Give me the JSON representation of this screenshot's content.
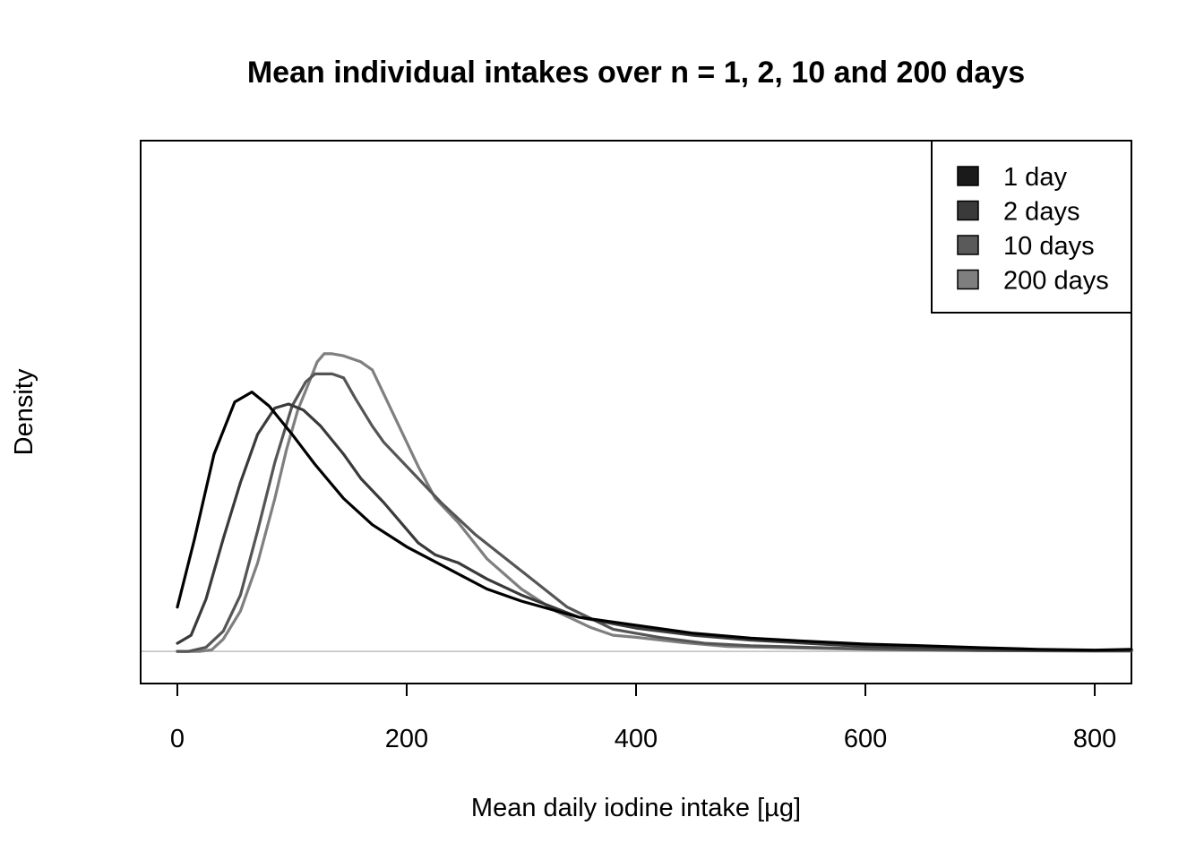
{
  "chart_data": {
    "type": "line",
    "title": "Mean individual intakes over n = 1, 2, 10 and 200 days",
    "xlabel": "Mean daily iodine intake [µg]",
    "ylabel": "Density",
    "xlim": [
      -32,
      832
    ],
    "ylim": [
      -0.08,
      1.27
    ],
    "x_ticks": [
      0,
      200,
      400,
      600,
      800
    ],
    "x_tick_labels": [
      "0",
      "200",
      "400",
      "600",
      "800"
    ],
    "y_ticks_shown": false,
    "baseline_y": 0,
    "legend_position": "top-right",
    "series": [
      {
        "name": "1 day",
        "color": "#000000",
        "swatch_color": "#1a1a1a",
        "points": [
          [
            0,
            0.11
          ],
          [
            15,
            0.28
          ],
          [
            32,
            0.49
          ],
          [
            50,
            0.62
          ],
          [
            65,
            0.645
          ],
          [
            80,
            0.61
          ],
          [
            100,
            0.54
          ],
          [
            120,
            0.465
          ],
          [
            145,
            0.38
          ],
          [
            170,
            0.315
          ],
          [
            200,
            0.26
          ],
          [
            240,
            0.2
          ],
          [
            270,
            0.155
          ],
          [
            300,
            0.125
          ],
          [
            350,
            0.085
          ],
          [
            400,
            0.065
          ],
          [
            450,
            0.045
          ],
          [
            500,
            0.033
          ],
          [
            550,
            0.025
          ],
          [
            600,
            0.018
          ],
          [
            650,
            0.014
          ],
          [
            700,
            0.009
          ],
          [
            750,
            0.005
          ],
          [
            800,
            0.003
          ],
          [
            832,
            0.005
          ]
        ]
      },
      {
        "name": "2 days",
        "color": "#3a3a3a",
        "swatch_color": "#3a3a3a",
        "points": [
          [
            0,
            0.02
          ],
          [
            12,
            0.04
          ],
          [
            25,
            0.13
          ],
          [
            40,
            0.28
          ],
          [
            55,
            0.42
          ],
          [
            70,
            0.54
          ],
          [
            85,
            0.605
          ],
          [
            97,
            0.615
          ],
          [
            110,
            0.6
          ],
          [
            125,
            0.56
          ],
          [
            145,
            0.49
          ],
          [
            160,
            0.43
          ],
          [
            180,
            0.37
          ],
          [
            210,
            0.27
          ],
          [
            225,
            0.24
          ],
          [
            245,
            0.22
          ],
          [
            270,
            0.18
          ],
          [
            300,
            0.14
          ],
          [
            350,
            0.085
          ],
          [
            400,
            0.058
          ],
          [
            450,
            0.04
          ],
          [
            500,
            0.028
          ],
          [
            550,
            0.02
          ],
          [
            600,
            0.012
          ],
          [
            650,
            0.009
          ],
          [
            700,
            0.005
          ],
          [
            750,
            0.003
          ],
          [
            800,
            0.002
          ],
          [
            832,
            0.002
          ]
        ]
      },
      {
        "name": "10 days",
        "color": "#555555",
        "swatch_color": "#5a5a5a",
        "points": [
          [
            0,
            0.0
          ],
          [
            10,
            0.0
          ],
          [
            25,
            0.01
          ],
          [
            40,
            0.05
          ],
          [
            55,
            0.14
          ],
          [
            70,
            0.3
          ],
          [
            85,
            0.47
          ],
          [
            100,
            0.61
          ],
          [
            112,
            0.67
          ],
          [
            120,
            0.69
          ],
          [
            135,
            0.69
          ],
          [
            145,
            0.68
          ],
          [
            155,
            0.63
          ],
          [
            170,
            0.56
          ],
          [
            180,
            0.52
          ],
          [
            200,
            0.46
          ],
          [
            230,
            0.37
          ],
          [
            260,
            0.29
          ],
          [
            300,
            0.2
          ],
          [
            340,
            0.11
          ],
          [
            380,
            0.055
          ],
          [
            420,
            0.035
          ],
          [
            460,
            0.02
          ],
          [
            500,
            0.014
          ],
          [
            550,
            0.01
          ],
          [
            600,
            0.006
          ],
          [
            650,
            0.004
          ],
          [
            700,
            0.002
          ],
          [
            800,
            0.001
          ],
          [
            832,
            0.001
          ]
        ]
      },
      {
        "name": "200 days",
        "color": "#7f7f7f",
        "swatch_color": "#7f7f7f",
        "points": [
          [
            0,
            0.0
          ],
          [
            20,
            0.0
          ],
          [
            30,
            0.004
          ],
          [
            40,
            0.03
          ],
          [
            55,
            0.1
          ],
          [
            70,
            0.22
          ],
          [
            85,
            0.38
          ],
          [
            95,
            0.5
          ],
          [
            105,
            0.6
          ],
          [
            115,
            0.67
          ],
          [
            122,
            0.72
          ],
          [
            128,
            0.74
          ],
          [
            135,
            0.74
          ],
          [
            145,
            0.735
          ],
          [
            160,
            0.72
          ],
          [
            170,
            0.7
          ],
          [
            180,
            0.64
          ],
          [
            195,
            0.55
          ],
          [
            210,
            0.46
          ],
          [
            225,
            0.38
          ],
          [
            245,
            0.32
          ],
          [
            270,
            0.23
          ],
          [
            300,
            0.155
          ],
          [
            330,
            0.1
          ],
          [
            360,
            0.06
          ],
          [
            380,
            0.04
          ],
          [
            400,
            0.035
          ],
          [
            440,
            0.022
          ],
          [
            480,
            0.012
          ],
          [
            550,
            0.008
          ],
          [
            600,
            0.005
          ],
          [
            700,
            0.002
          ],
          [
            800,
            0.001
          ],
          [
            832,
            0.001
          ]
        ]
      }
    ]
  }
}
